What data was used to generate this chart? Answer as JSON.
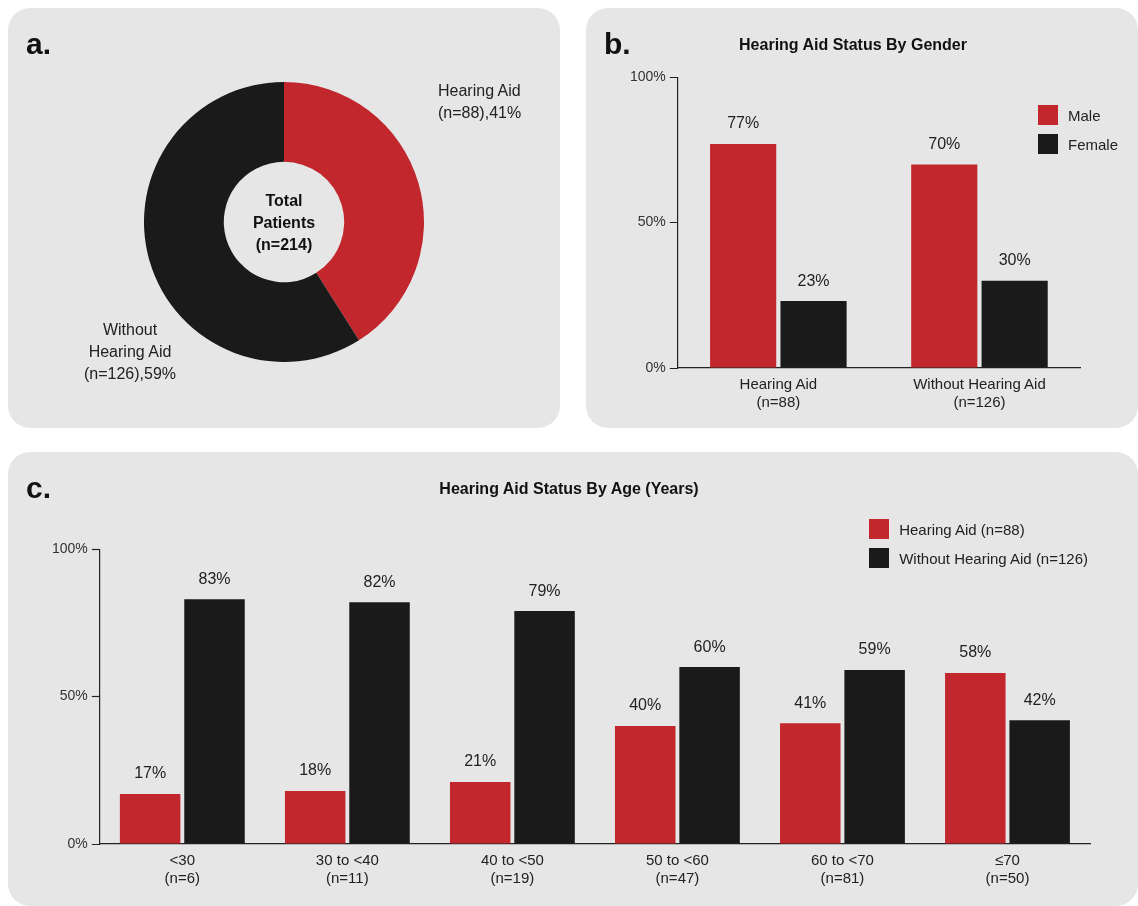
{
  "chart_data": [
    {
      "type": "donut",
      "categories": [
        "Hearing Aid\n(n=88)",
        "Without\nHearing Aid\n(n=126)"
      ],
      "values": [
        41,
        59
      ],
      "value_labels": [
        "41%",
        "59%"
      ],
      "colors": [
        "#c1272d",
        "#1a1a1a"
      ],
      "annotations": [
        "a.",
        "Total\nPatients\n(n=214)"
      ]
    },
    {
      "type": "bar",
      "title": "Hearing Aid Status By Gender",
      "categories": [
        "Hearing Aid\n(n=88)",
        "Without Hearing Aid\n(n=126)"
      ],
      "series": [
        {
          "name": "Male",
          "color": "#c1272d",
          "values": [
            77,
            70
          ],
          "value_labels": [
            "77%",
            "70%"
          ]
        },
        {
          "name": "Female",
          "color": "#1a1a1a",
          "values": [
            23,
            30
          ],
          "value_labels": [
            "23%",
            "30%"
          ]
        }
      ],
      "ylim": [
        0,
        100
      ],
      "yticks": [
        {
          "value": 0,
          "label": "0%"
        },
        {
          "value": 50,
          "label": "50%"
        },
        {
          "value": 100,
          "label": "100%"
        }
      ],
      "grid": false,
      "legend": "top right",
      "annotations": [
        "b."
      ]
    },
    {
      "type": "bar",
      "title": "Hearing Aid Status By Age (Years)",
      "categories": [
        "<30\n(n=6)",
        "30 to <40\n(n=11)",
        "40 to <50\n(n=19)",
        "50 to <60\n(n=47)",
        "60 to <70\n(n=81)",
        "≤70\n(n=50)"
      ],
      "series": [
        {
          "name": "Hearing Aid (n=88)",
          "color": "#c1272d",
          "values": [
            17,
            18,
            21,
            40,
            41,
            58
          ],
          "value_labels": [
            "17%",
            "18%",
            "21%",
            "40%",
            "41%",
            "58%"
          ]
        },
        {
          "name": "Without Hearing Aid (n=126)",
          "color": "#1a1a1a",
          "values": [
            83,
            82,
            79,
            60,
            59,
            42
          ],
          "value_labels": [
            "83%",
            "82%",
            "79%",
            "60%",
            "59%",
            "42%"
          ]
        }
      ],
      "ylim": [
        0,
        100
      ],
      "yticks": [
        {
          "value": 0,
          "label": "0%"
        },
        {
          "value": 50,
          "label": "50%"
        },
        {
          "value": 100,
          "label": "100%"
        }
      ],
      "grid": false,
      "legend": "top right",
      "annotations": [
        "c."
      ]
    }
  ]
}
